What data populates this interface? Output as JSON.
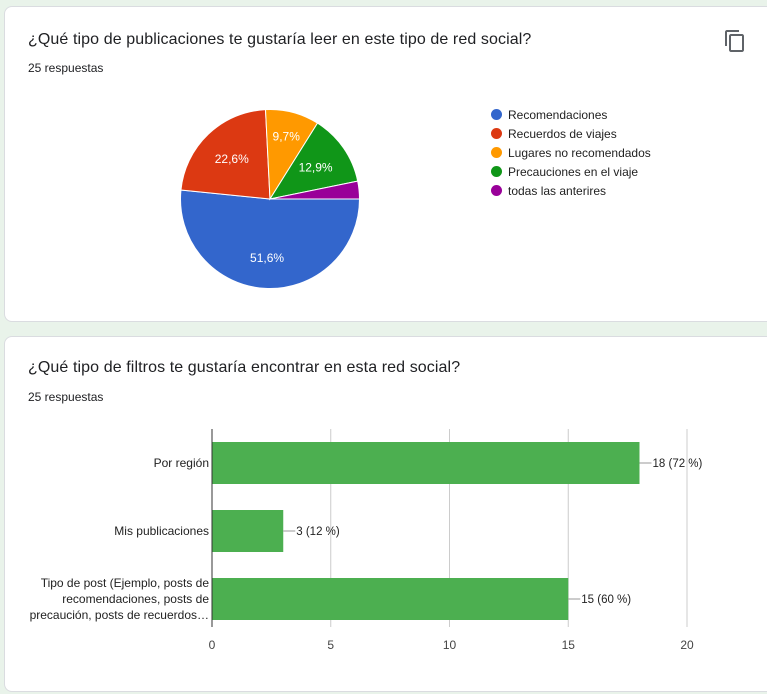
{
  "cards": [
    {
      "title": "¿Qué tipo de publicaciones te gustaría leer en este tipo de red social?",
      "responses": "25 respuestas",
      "icon": "copy-icon"
    },
    {
      "title": "¿Qué tipo de filtros te gustaría encontrar en esta red social?",
      "responses": "25 respuestas"
    }
  ],
  "chart_data": [
    {
      "type": "pie",
      "slices": [
        {
          "label": "Recomendaciones",
          "value": 51.6,
          "display": "51,6%",
          "color": "#3366cc"
        },
        {
          "label": "Recuerdos de viajes",
          "value": 22.6,
          "display": "22,6%",
          "color": "#dc3912"
        },
        {
          "label": "Lugares no recomendados",
          "value": 9.7,
          "display": "9,7%",
          "color": "#ff9900"
        },
        {
          "label": "Precauciones en el viaje",
          "value": 12.9,
          "display": "12,9%",
          "color": "#109618"
        },
        {
          "label": "todas las anterires",
          "value": 3.2,
          "display": "",
          "color": "#990099"
        }
      ],
      "legend_position": "right"
    },
    {
      "type": "bar",
      "orientation": "horizontal",
      "categories": [
        [
          "Por región"
        ],
        [
          "Mis publicaciones"
        ],
        [
          "Tipo de post (Ejemplo, posts de",
          "recomendaciones, posts de",
          "precaución, posts de recuerdos…"
        ]
      ],
      "values": [
        18,
        3,
        15
      ],
      "value_labels": [
        "18 (72 %)",
        "3 (12 %)",
        "15 (60 %)"
      ],
      "xlim": [
        0,
        20
      ],
      "xticks": [
        "0",
        "5",
        "10",
        "15",
        "20"
      ],
      "xtick_values": [
        0,
        5,
        10,
        15,
        20
      ],
      "bar_color": "#4caf50",
      "grid": true
    }
  ]
}
